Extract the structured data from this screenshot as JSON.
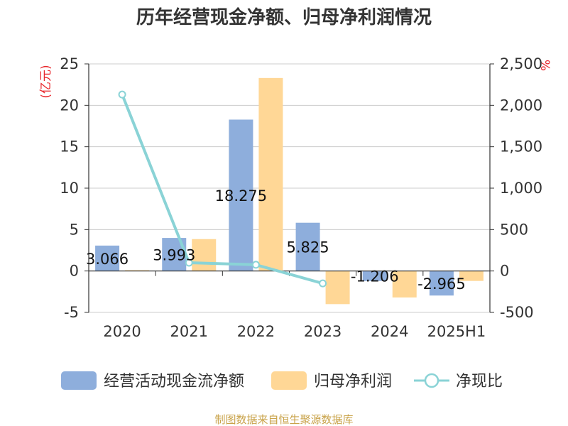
{
  "chart_data": {
    "type": "bar",
    "title": "历年经营现金净额、归母净利润情况",
    "categories": [
      "2020",
      "2021",
      "2022",
      "2023",
      "2024",
      "2025H1"
    ],
    "left_axis": {
      "unit": "(亿元)",
      "ylim": [
        -5,
        25
      ],
      "ticks": [
        -5,
        0,
        5,
        10,
        15,
        20,
        25
      ]
    },
    "right_axis": {
      "unit": "%",
      "ylim": [
        -500,
        2500
      ],
      "ticks": [
        -500,
        0,
        500,
        1000,
        1500,
        2000,
        2500
      ],
      "tick_labels": [
        "-500",
        "0",
        "500",
        "1,000",
        "1,500",
        "2,000",
        "2,500"
      ]
    },
    "series": [
      {
        "name": "经营活动现金流净额",
        "kind": "bar",
        "axis": "left",
        "color": "#8eaedc",
        "values": [
          3.066,
          3.993,
          18.275,
          5.825,
          -1.206,
          -2.965
        ],
        "labels": [
          "3.066",
          "3.993",
          "18.275",
          "5.825",
          "-1.206",
          "-2.965"
        ]
      },
      {
        "name": "归母净利润",
        "kind": "bar",
        "axis": "left",
        "color": "#ffd796",
        "values": [
          0.1,
          3.85,
          23.3,
          -4.0,
          -3.2,
          -1.2
        ]
      },
      {
        "name": "净现比",
        "kind": "line",
        "axis": "right",
        "color": "#8ad3d6",
        "values": [
          2130,
          100,
          75,
          -150,
          null,
          null
        ]
      }
    ],
    "grid": true,
    "legend_position": "bottom",
    "source": "制图数据来自恒生聚源数据库"
  }
}
